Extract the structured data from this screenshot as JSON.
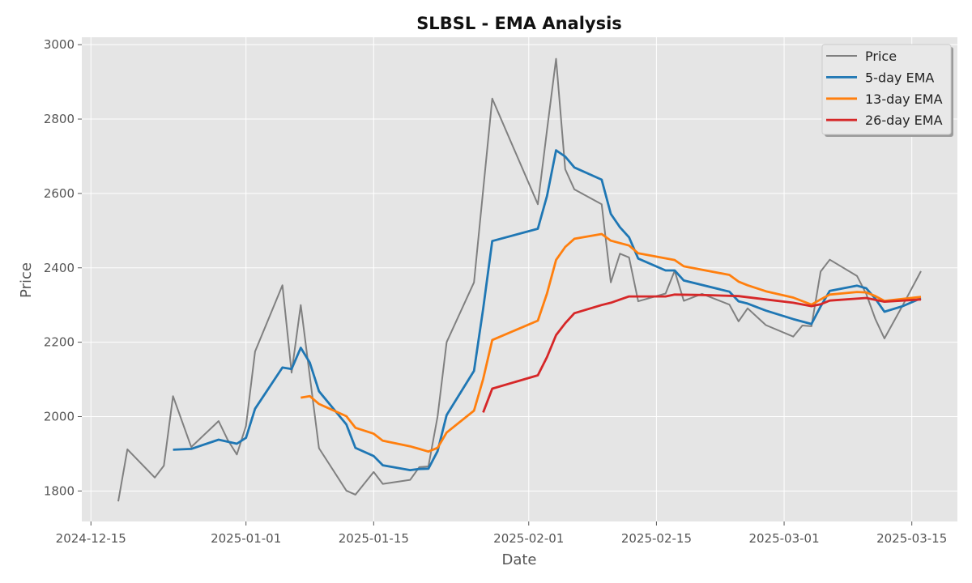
{
  "chart_data": {
    "type": "line",
    "title": "SLBSL - EMA Analysis",
    "xlabel": "Date",
    "ylabel": "Price",
    "x_ticks": [
      "2024-12-15",
      "2025-01-01",
      "2025-01-15",
      "2025-02-01",
      "2025-02-15",
      "2025-03-01",
      "2025-03-15"
    ],
    "y_ticks": [
      1800,
      2000,
      2200,
      2400,
      2600,
      2800,
      3000
    ],
    "xlim": [
      "2024-12-14",
      "2025-03-20"
    ],
    "ylim": [
      1718,
      3020
    ],
    "grid": true,
    "legend_position": "top-right",
    "series": [
      {
        "name": "Price",
        "color": "#808080",
        "points": [
          [
            "2024-12-18",
            1772
          ],
          [
            "2024-12-19",
            1912
          ],
          [
            "2024-12-22",
            1836
          ],
          [
            "2024-12-23",
            1868
          ],
          [
            "2024-12-24",
            2055
          ],
          [
            "2024-12-26",
            1918
          ],
          [
            "2024-12-29",
            1988
          ],
          [
            "2024-12-30",
            1937
          ],
          [
            "2024-12-31",
            1898
          ],
          [
            "2025-01-01",
            1975
          ],
          [
            "2025-01-02",
            2175
          ],
          [
            "2025-01-05",
            2353
          ],
          [
            "2025-01-06",
            2118
          ],
          [
            "2025-01-07",
            2300
          ],
          [
            "2025-01-09",
            1915
          ],
          [
            "2025-01-12",
            1801
          ],
          [
            "2025-01-13",
            1790
          ],
          [
            "2025-01-15",
            1851
          ],
          [
            "2025-01-16",
            1819
          ],
          [
            "2025-01-19",
            1830
          ],
          [
            "2025-01-20",
            1864
          ],
          [
            "2025-01-21",
            1866
          ],
          [
            "2025-01-22",
            2000
          ],
          [
            "2025-01-23",
            2200
          ],
          [
            "2025-01-26",
            2361
          ],
          [
            "2025-01-28",
            2855
          ],
          [
            "2025-02-02",
            2571
          ],
          [
            "2025-02-03",
            2770
          ],
          [
            "2025-02-04",
            2962
          ],
          [
            "2025-02-05",
            2665
          ],
          [
            "2025-02-06",
            2611
          ],
          [
            "2025-02-09",
            2571
          ],
          [
            "2025-02-10",
            2361
          ],
          [
            "2025-02-11",
            2438
          ],
          [
            "2025-02-12",
            2428
          ],
          [
            "2025-02-13",
            2310
          ],
          [
            "2025-02-16",
            2331
          ],
          [
            "2025-02-17",
            2392
          ],
          [
            "2025-02-18",
            2311
          ],
          [
            "2025-02-20",
            2330
          ],
          [
            "2025-02-23",
            2301
          ],
          [
            "2025-02-24",
            2256
          ],
          [
            "2025-02-25",
            2291
          ],
          [
            "2025-02-27",
            2246
          ],
          [
            "2025-03-02",
            2215
          ],
          [
            "2025-03-03",
            2245
          ],
          [
            "2025-03-04",
            2243
          ],
          [
            "2025-03-05",
            2390
          ],
          [
            "2025-03-06",
            2422
          ],
          [
            "2025-03-09",
            2378
          ],
          [
            "2025-03-10",
            2330
          ],
          [
            "2025-03-11",
            2262
          ],
          [
            "2025-03-12",
            2210
          ],
          [
            "2025-03-14",
            2299
          ],
          [
            "2025-03-16",
            2391
          ]
        ]
      },
      {
        "name": "5-day EMA",
        "color": "#1f77b4",
        "points": [
          [
            "2024-12-24",
            1911
          ],
          [
            "2024-12-26",
            1913
          ],
          [
            "2024-12-29",
            1938
          ],
          [
            "2024-12-31",
            1927
          ],
          [
            "2025-01-01",
            1943
          ],
          [
            "2025-01-02",
            2021
          ],
          [
            "2025-01-05",
            2132
          ],
          [
            "2025-01-06",
            2128
          ],
          [
            "2025-01-07",
            2185
          ],
          [
            "2025-01-08",
            2145
          ],
          [
            "2025-01-09",
            2068
          ],
          [
            "2025-01-12",
            1979
          ],
          [
            "2025-01-13",
            1916
          ],
          [
            "2025-01-15",
            1894
          ],
          [
            "2025-01-16",
            1869
          ],
          [
            "2025-01-19",
            1856
          ],
          [
            "2025-01-20",
            1859
          ],
          [
            "2025-01-21",
            1860
          ],
          [
            "2025-01-22",
            1907
          ],
          [
            "2025-01-23",
            2004
          ],
          [
            "2025-01-26",
            2123
          ],
          [
            "2025-01-27",
            2290
          ],
          [
            "2025-01-28",
            2472
          ],
          [
            "2025-02-02",
            2505
          ],
          [
            "2025-02-03",
            2593
          ],
          [
            "2025-02-04",
            2716
          ],
          [
            "2025-02-05",
            2699
          ],
          [
            "2025-02-06",
            2670
          ],
          [
            "2025-02-09",
            2637
          ],
          [
            "2025-02-10",
            2545
          ],
          [
            "2025-02-11",
            2509
          ],
          [
            "2025-02-12",
            2482
          ],
          [
            "2025-02-13",
            2425
          ],
          [
            "2025-02-16",
            2393
          ],
          [
            "2025-02-17",
            2393
          ],
          [
            "2025-02-18",
            2366
          ],
          [
            "2025-02-23",
            2336
          ],
          [
            "2025-02-24",
            2310
          ],
          [
            "2025-02-25",
            2304
          ],
          [
            "2025-02-27",
            2285
          ],
          [
            "2025-03-02",
            2262
          ],
          [
            "2025-03-04",
            2249
          ],
          [
            "2025-03-05",
            2296
          ],
          [
            "2025-03-06",
            2338
          ],
          [
            "2025-03-09",
            2352
          ],
          [
            "2025-03-10",
            2345
          ],
          [
            "2025-03-11",
            2317
          ],
          [
            "2025-03-12",
            2282
          ],
          [
            "2025-03-14",
            2297
          ],
          [
            "2025-03-16",
            2318
          ]
        ]
      },
      {
        "name": "13-day EMA",
        "color": "#ff7f0e",
        "points": [
          [
            "2025-01-07",
            2051
          ],
          [
            "2025-01-08",
            2055
          ],
          [
            "2025-01-09",
            2034
          ],
          [
            "2025-01-12",
            2001
          ],
          [
            "2025-01-13",
            1970
          ],
          [
            "2025-01-15",
            1954
          ],
          [
            "2025-01-16",
            1935
          ],
          [
            "2025-01-19",
            1920
          ],
          [
            "2025-01-20",
            1913
          ],
          [
            "2025-01-21",
            1906
          ],
          [
            "2025-01-22",
            1916
          ],
          [
            "2025-01-23",
            1957
          ],
          [
            "2025-01-26",
            2016
          ],
          [
            "2025-01-27",
            2101
          ],
          [
            "2025-01-28",
            2206
          ],
          [
            "2025-02-02",
            2258
          ],
          [
            "2025-02-03",
            2331
          ],
          [
            "2025-02-04",
            2421
          ],
          [
            "2025-02-05",
            2456
          ],
          [
            "2025-02-06",
            2478
          ],
          [
            "2025-02-09",
            2491
          ],
          [
            "2025-02-10",
            2473
          ],
          [
            "2025-02-12",
            2460
          ],
          [
            "2025-02-13",
            2439
          ],
          [
            "2025-02-17",
            2421
          ],
          [
            "2025-02-18",
            2404
          ],
          [
            "2025-02-23",
            2381
          ],
          [
            "2025-02-24",
            2363
          ],
          [
            "2025-02-25",
            2353
          ],
          [
            "2025-02-27",
            2337
          ],
          [
            "2025-03-02",
            2320
          ],
          [
            "2025-03-04",
            2301
          ],
          [
            "2025-03-05",
            2315
          ],
          [
            "2025-03-06",
            2328
          ],
          [
            "2025-03-09",
            2335
          ],
          [
            "2025-03-10",
            2334
          ],
          [
            "2025-03-11",
            2324
          ],
          [
            "2025-03-12",
            2311
          ],
          [
            "2025-03-16",
            2322
          ]
        ]
      },
      {
        "name": "26-day EMA",
        "color": "#d62728",
        "points": [
          [
            "2025-01-27",
            2011
          ],
          [
            "2025-01-28",
            2075
          ],
          [
            "2025-02-02",
            2111
          ],
          [
            "2025-02-03",
            2160
          ],
          [
            "2025-02-04",
            2219
          ],
          [
            "2025-02-05",
            2251
          ],
          [
            "2025-02-06",
            2278
          ],
          [
            "2025-02-09",
            2300
          ],
          [
            "2025-02-10",
            2306
          ],
          [
            "2025-02-12",
            2323
          ],
          [
            "2025-02-16",
            2323
          ],
          [
            "2025-02-17",
            2328
          ],
          [
            "2025-02-20",
            2327
          ],
          [
            "2025-02-24",
            2324
          ],
          [
            "2025-02-27",
            2315
          ],
          [
            "2025-03-02",
            2306
          ],
          [
            "2025-03-04",
            2297
          ],
          [
            "2025-03-05",
            2302
          ],
          [
            "2025-03-06",
            2312
          ],
          [
            "2025-03-10",
            2319
          ],
          [
            "2025-03-12",
            2309
          ],
          [
            "2025-03-16",
            2315
          ]
        ]
      }
    ]
  }
}
